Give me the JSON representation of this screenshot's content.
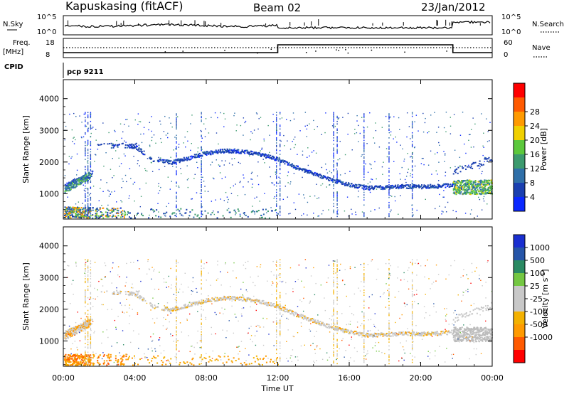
{
  "header": {
    "station": "Kapuskasing (fitACF)",
    "beam": "Beam 02",
    "date": "23/Jan/2012"
  },
  "top_panels": {
    "nsky_label": "N.Sky",
    "nsky_ticks": [
      "10^5",
      "10^0"
    ],
    "nsearch_label": "N.Search",
    "nsearch_ticks": [
      "10^5",
      "10^0"
    ],
    "freq_label": "Freq.",
    "freq_unit": "[MHz]",
    "freq_ticks": [
      "18",
      "8"
    ],
    "nave_label": "Nave",
    "nave_ticks": [
      "60",
      "0"
    ],
    "cpid_label": "CPID",
    "cpid_value": "pcp 9211"
  },
  "colors": {
    "power_scale": [
      "#0a28ff",
      "#1a3fb0",
      "#2f6fa8",
      "#3c9a6e",
      "#5cc83c",
      "#f0d000",
      "#ff9a00",
      "#ff5a00",
      "#ff0000"
    ],
    "velocity_scale": [
      "#ff0000",
      "#ff5a00",
      "#ff9a00",
      "#f3b100",
      "#c8c8c8",
      "#c8c8c8",
      "#74c742",
      "#2a8a63",
      "#2655a8",
      "#1a2fd0"
    ]
  },
  "chart_data": [
    {
      "type": "heatmap",
      "panel": "power",
      "ylabel": "Slant Range [km]",
      "ylim": [
        200,
        4600
      ],
      "yticks": [
        "1000",
        "2000",
        "3000",
        "4000"
      ],
      "xlim": [
        0,
        24
      ],
      "colorbar_label": "Power [dB]",
      "colorbar_ticks": [
        "4",
        "8",
        "12",
        "16",
        "20",
        "24",
        "28"
      ],
      "echo_band": {
        "hours": [
          0.0,
          0.5,
          1.0,
          1.5,
          2.0,
          3.0,
          4.0,
          5.0,
          6.0,
          7.0,
          8.0,
          9.0,
          10.0,
          11.0,
          12.0,
          13.0,
          14.0,
          15.0,
          16.0,
          17.0,
          18.0,
          19.0,
          20.0,
          21.0,
          21.8
        ],
        "range_km": [
          1250,
          1400,
          1500,
          1550,
          2400,
          2550,
          2500,
          2100,
          2000,
          2150,
          2300,
          2380,
          2350,
          2260,
          2100,
          1850,
          1650,
          1450,
          1300,
          1200,
          1220,
          1250,
          1240,
          1260,
          1300
        ]
      }
    },
    {
      "type": "heatmap",
      "panel": "velocity",
      "ylabel": "Slant Range [km]",
      "ylim": [
        200,
        4600
      ],
      "yticks": [
        "1000",
        "2000",
        "3000",
        "4000"
      ],
      "xlim": [
        0,
        24
      ],
      "xticks": [
        "00:00",
        "04:00",
        "08:00",
        "12:00",
        "16:00",
        "20:00",
        "00:00"
      ],
      "xlabel": "Time UT",
      "colorbar_label": "Velocity [m s^-1]",
      "colorbar_ticks": [
        "1000",
        "500",
        "100",
        "25",
        "-25",
        "-100",
        "-500",
        "-1000"
      ]
    }
  ]
}
